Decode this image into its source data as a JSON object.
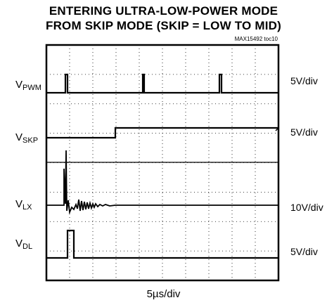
{
  "header": {
    "title_line1": "ENTERING ULTRA-LOW-POWER MODE",
    "title_line2": "FROM SKIP MODE (SKIP = LOW TO MID)",
    "figure_id": "MAX15492 toc10"
  },
  "chart_data": {
    "type": "line",
    "title": "ENTERING ULTRA-LOW-POWER MODE FROM SKIP MODE (SKIP = LOW TO MID)",
    "xlabel": "5µs/div",
    "x_divisions": 10,
    "y_divisions": 8,
    "grid": true,
    "traces": [
      {
        "label_main": "V",
        "label_sub": "PWM",
        "scale": "5V/div"
      },
      {
        "label_main": "V",
        "label_sub": "SKP",
        "scale": "5V/div"
      },
      {
        "label_main": "V",
        "label_sub": "LX",
        "scale": "10V/div"
      },
      {
        "label_main": "V",
        "label_sub": "DL",
        "scale": "5V/div"
      }
    ]
  }
}
